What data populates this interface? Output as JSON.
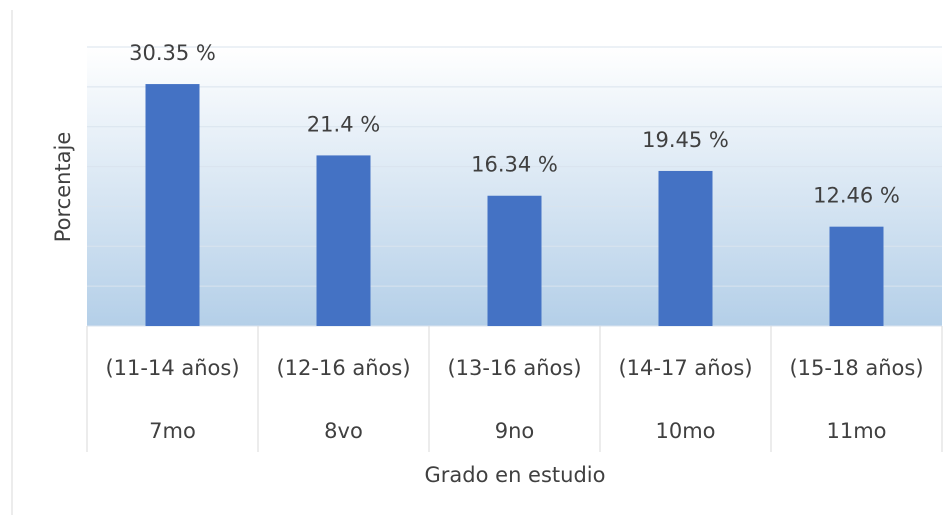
{
  "chart_data": {
    "type": "bar",
    "categories": [
      "7mo",
      "8vo",
      "9no",
      "10mo",
      "11mo"
    ],
    "category_ages": [
      "(11-14 años)",
      "(12-16 años)",
      "(13-16 años)",
      "(14-17 años)",
      "(15-18 años)"
    ],
    "values": [
      30.35,
      21.4,
      16.34,
      19.45,
      12.46
    ],
    "value_labels": [
      "30.35 %",
      "21.4 %",
      "16.34 %",
      "19.45 %",
      "12.46 %"
    ],
    "color": "#4472c4",
    "ylim": [
      0,
      35
    ],
    "yticks": [
      0,
      5,
      10,
      15,
      20,
      25,
      30,
      35
    ],
    "grid": true,
    "xlabel": "Grado en estudio",
    "ylabel": "Porcentaje"
  }
}
